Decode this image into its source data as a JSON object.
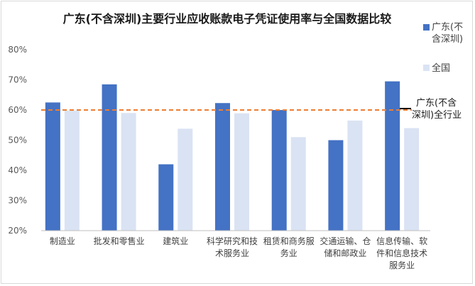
{
  "chart_data": {
    "type": "bar",
    "title": "广东(不含深圳)主要行业应收账款电子凭证使用率与全国数据比较",
    "categories": [
      [
        "制造业"
      ],
      [
        "批发和零售业"
      ],
      [
        "建筑业"
      ],
      [
        "科学研究和技",
        "术服务业"
      ],
      [
        "租赁和商务服",
        "务业"
      ],
      [
        "交通运输、仓",
        "储和邮政业"
      ],
      [
        "信息传输、软",
        "件和信息技术",
        "服务业"
      ]
    ],
    "series": [
      {
        "name": [
          "广东(不",
          "含深圳)"
        ],
        "color": "#4472c4",
        "values": [
          62.5,
          68.5,
          42.0,
          62.3,
          60.0,
          50.0,
          69.5
        ]
      },
      {
        "name": [
          "全国"
        ],
        "color": "#dae3f3",
        "values": [
          59.8,
          59.0,
          53.8,
          58.9,
          51.0,
          56.5,
          54.0
        ]
      }
    ],
    "reference_line": {
      "name": [
        "广东(不含",
        "深圳)全行业"
      ],
      "value": 60,
      "color": "#ed7d31"
    },
    "y_ticks": [
      "20%",
      "30%",
      "40%",
      "50%",
      "60%",
      "70%",
      "80%"
    ],
    "ylim": [
      20,
      80
    ],
    "grid": false,
    "legend_position": "right"
  }
}
